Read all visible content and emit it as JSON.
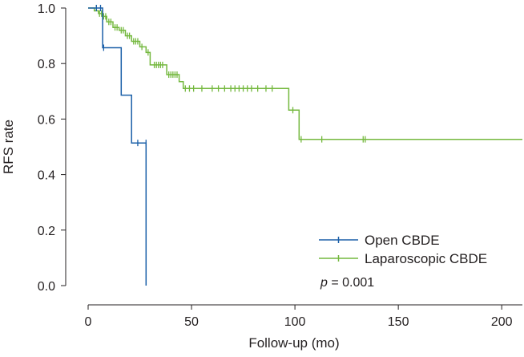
{
  "chart_data": {
    "type": "line",
    "subtype": "kaplan-meier step curve with censor marks",
    "xlabel": "Follow-up (mo)",
    "ylabel": "RFS rate",
    "xlim": [
      0,
      210
    ],
    "ylim": [
      0.0,
      1.0
    ],
    "x_ticks": [
      "0",
      "50",
      "100",
      "150",
      "200"
    ],
    "x_tick_values": [
      0,
      50,
      100,
      150,
      200
    ],
    "y_ticks": [
      "0.0",
      "0.2",
      "0.4",
      "0.6",
      "0.8",
      "1.0"
    ],
    "y_tick_values": [
      0.0,
      0.2,
      0.4,
      0.6,
      0.8,
      1.0
    ],
    "grid": false,
    "legend_position": "bottom-right",
    "annotation": {
      "italic": "p",
      "text": " = 0.001"
    },
    "series": [
      {
        "name": "Open CBDE",
        "color": "#1a5fa8",
        "steps": [
          [
            0,
            1.0
          ],
          [
            7,
            1.0
          ],
          [
            7,
            0.857
          ],
          [
            16,
            0.857
          ],
          [
            16,
            0.686
          ],
          [
            21,
            0.686
          ],
          [
            21,
            0.514
          ],
          [
            28,
            0.514
          ],
          [
            28,
            0.0
          ]
        ],
        "censored": [
          [
            4,
            1.0
          ],
          [
            6,
            1.0
          ],
          [
            7.5,
            0.857
          ],
          [
            24,
            0.514
          ],
          [
            28,
            0.514
          ]
        ]
      },
      {
        "name": "Laparoscopic CBDE",
        "color": "#74b83e",
        "steps": [
          [
            0,
            1.0
          ],
          [
            3,
            1.0
          ],
          [
            3,
            0.99
          ],
          [
            5,
            0.99
          ],
          [
            5,
            0.98
          ],
          [
            7,
            0.98
          ],
          [
            7,
            0.97
          ],
          [
            9,
            0.97
          ],
          [
            9,
            0.95
          ],
          [
            12,
            0.95
          ],
          [
            12,
            0.93
          ],
          [
            15,
            0.93
          ],
          [
            15,
            0.92
          ],
          [
            18,
            0.92
          ],
          [
            18,
            0.9
          ],
          [
            21,
            0.9
          ],
          [
            21,
            0.88
          ],
          [
            25,
            0.88
          ],
          [
            25,
            0.86
          ],
          [
            28,
            0.86
          ],
          [
            28,
            0.84
          ],
          [
            30,
            0.84
          ],
          [
            30,
            0.795
          ],
          [
            38,
            0.795
          ],
          [
            38,
            0.76
          ],
          [
            44,
            0.76
          ],
          [
            44,
            0.735
          ],
          [
            46,
            0.735
          ],
          [
            46,
            0.71
          ],
          [
            97,
            0.71
          ],
          [
            97,
            0.632
          ],
          [
            102,
            0.632
          ],
          [
            102,
            0.527
          ],
          [
            210,
            0.527
          ]
        ],
        "censored": [
          [
            4,
            1.0
          ],
          [
            5.5,
            0.98
          ],
          [
            6.5,
            0.98
          ],
          [
            7.5,
            0.97
          ],
          [
            8.5,
            0.97
          ],
          [
            10,
            0.95
          ],
          [
            11,
            0.95
          ],
          [
            13,
            0.93
          ],
          [
            14,
            0.93
          ],
          [
            16,
            0.92
          ],
          [
            17,
            0.92
          ],
          [
            19,
            0.9
          ],
          [
            20,
            0.9
          ],
          [
            22,
            0.88
          ],
          [
            23,
            0.88
          ],
          [
            24,
            0.88
          ],
          [
            26,
            0.86
          ],
          [
            29,
            0.84
          ],
          [
            32,
            0.795
          ],
          [
            33,
            0.795
          ],
          [
            34,
            0.795
          ],
          [
            35,
            0.795
          ],
          [
            36,
            0.795
          ],
          [
            39,
            0.76
          ],
          [
            40,
            0.76
          ],
          [
            41,
            0.76
          ],
          [
            42,
            0.76
          ],
          [
            43,
            0.76
          ],
          [
            47,
            0.71
          ],
          [
            49,
            0.71
          ],
          [
            51,
            0.71
          ],
          [
            55,
            0.71
          ],
          [
            60,
            0.71
          ],
          [
            63,
            0.71
          ],
          [
            66,
            0.71
          ],
          [
            69,
            0.71
          ],
          [
            71,
            0.71
          ],
          [
            73,
            0.71
          ],
          [
            75,
            0.71
          ],
          [
            77,
            0.71
          ],
          [
            79,
            0.71
          ],
          [
            82,
            0.71
          ],
          [
            86,
            0.71
          ],
          [
            89,
            0.71
          ],
          [
            99,
            0.632
          ],
          [
            103,
            0.527
          ],
          [
            113,
            0.527
          ],
          [
            133,
            0.527
          ],
          [
            134,
            0.527
          ]
        ]
      }
    ]
  }
}
